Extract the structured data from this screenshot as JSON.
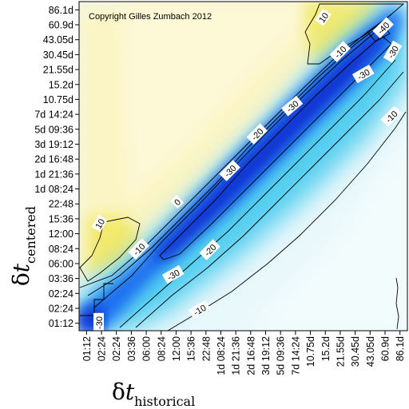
{
  "chart_data": {
    "type": "heatmap",
    "copyright": "Copyright Gilles Zumbach 2012",
    "x_ticks": [
      "01:12",
      "02:24",
      "02:24",
      "03:36",
      "06:00",
      "08:24",
      "12:00",
      "15:36",
      "22:48",
      "1d 08:24",
      "1d 21:36",
      "2d 16:48",
      "3d 19:12",
      "5d 09:36",
      "7d 14:24",
      "10.75d",
      "15.2d",
      "21.55d",
      "30.45d",
      "43.05d",
      "60.9d",
      "86.1d"
    ],
    "y_ticks": [
      "01:12",
      "02:24",
      "02:24",
      "03:36",
      "06:00",
      "08:24",
      "12:00",
      "15:36",
      "22:48",
      "1d 08:24",
      "1d 21:36",
      "2d 16:48",
      "3d 19:12",
      "5d 09:36",
      "7d 14:24",
      "10.75d",
      "15.2d",
      "21.55d",
      "30.45d",
      "43.05d",
      "60.9d",
      "86.1d"
    ],
    "x_title": {
      "delta": "δ",
      "var": "t",
      "sub": "historical"
    },
    "y_title": {
      "delta": "δ",
      "var": "t",
      "sub": "centered"
    },
    "contour_labels": [
      "10",
      "10",
      "0",
      "-10",
      "-20",
      "-30",
      "-30",
      "-30",
      "-40",
      "-30",
      "-10",
      "-30",
      "-20",
      "-10",
      "-10",
      "-30"
    ],
    "colors": {
      "yellow_pale": "#fdf8d2",
      "yellow": "#f2e96a",
      "cyan_pale": "#e6f8fb",
      "cyan": "#37c8ea",
      "blue": "#0d5bea",
      "blue_deep": "#0926c8"
    }
  }
}
